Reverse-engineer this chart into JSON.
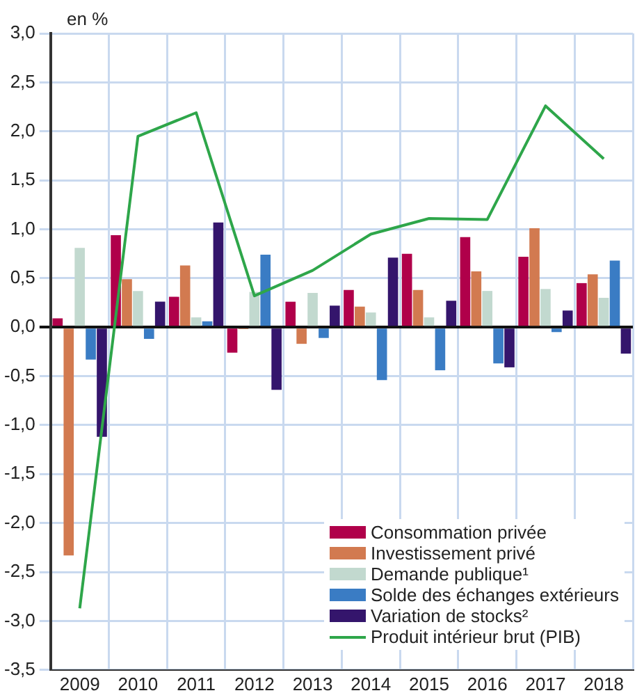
{
  "chart_data": {
    "type": "bar",
    "ylabel": "en %",
    "categories": [
      "2009",
      "2010",
      "2011",
      "2012",
      "2013",
      "2014",
      "2015",
      "2016",
      "2017",
      "2018"
    ],
    "series": [
      {
        "name": "Consommation privée",
        "color": "#b0004a",
        "values": [
          0.09,
          0.94,
          0.31,
          -0.26,
          0.26,
          0.38,
          0.75,
          0.92,
          0.72,
          0.45
        ]
      },
      {
        "name": "Investissement privé",
        "color": "#d27a50",
        "values": [
          -2.33,
          0.49,
          0.63,
          -0.02,
          -0.17,
          0.21,
          0.38,
          0.57,
          1.01,
          0.54
        ]
      },
      {
        "name": "Demande publique¹",
        "color": "#c2d9cf",
        "values": [
          0.81,
          0.37,
          0.1,
          0.36,
          0.35,
          0.15,
          0.1,
          0.37,
          0.39,
          0.3
        ]
      },
      {
        "name": "Solde des échanges extérieurs",
        "color": "#3a7cc4",
        "values": [
          -0.33,
          -0.12,
          0.06,
          0.74,
          -0.11,
          -0.54,
          -0.44,
          -0.37,
          -0.05,
          0.68
        ]
      },
      {
        "name": "Variation de stocks²",
        "color": "#34156c",
        "values": [
          -1.12,
          0.26,
          1.07,
          -0.64,
          0.22,
          0.71,
          0.27,
          -0.41,
          0.17,
          -0.27
        ]
      },
      {
        "name": "Produit intérieur brut (PIB)",
        "color": "#2ea64a",
        "type": "line",
        "values": [
          -2.87,
          1.95,
          2.19,
          0.32,
          0.58,
          0.95,
          1.11,
          1.1,
          2.26,
          1.72
        ]
      }
    ],
    "ylim": [
      -3.5,
      3.0
    ],
    "yticks": [
      {
        "value": -3.5,
        "label": "-3,5"
      },
      {
        "value": -3.0,
        "label": "-3,0"
      },
      {
        "value": -2.5,
        "label": "-2,5"
      },
      {
        "value": -2.0,
        "label": "-2,0"
      },
      {
        "value": -1.5,
        "label": "-1,5"
      },
      {
        "value": -1.0,
        "label": "-1,0"
      },
      {
        "value": -0.5,
        "label": "-0,5"
      },
      {
        "value": 0,
        "label": "0,0"
      },
      {
        "value": 0.5,
        "label": "0,5"
      },
      {
        "value": 1.0,
        "label": "1,0"
      },
      {
        "value": 1.5,
        "label": "1,5"
      },
      {
        "value": 2.0,
        "label": "2,0"
      },
      {
        "value": 2.5,
        "label": "2,5"
      },
      {
        "value": 3.0,
        "label": "3,0"
      }
    ],
    "grid": true,
    "legend": "bottom right",
    "marker": "none"
  }
}
